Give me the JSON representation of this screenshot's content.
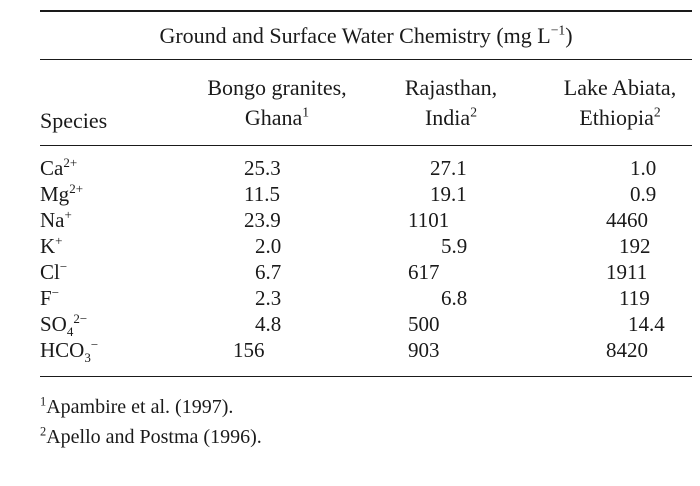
{
  "table": {
    "title": "Ground and Surface Water Chemistry (mg L",
    "title_sup": "−1",
    "title_end": ")",
    "headers": {
      "species": "Species",
      "col1_line1": "Bongo granites,",
      "col1_line2": "Ghana",
      "col1_sup": "1",
      "col2_line1": "Rajasthan,",
      "col2_line2": "India",
      "col2_sup": "2",
      "col3_line1": "Lake Abiata,",
      "col3_line2": "Ethiopia",
      "col3_sup": "2"
    },
    "rows": [
      {
        "base": "Ca",
        "sup": "2+",
        "sub": "",
        "v1": "25.3",
        "v2": "27.1",
        "v3": "1.0"
      },
      {
        "base": "Mg",
        "sup": "2+",
        "sub": "",
        "v1": "11.5",
        "v2": "19.1",
        "v3": "0.9"
      },
      {
        "base": "Na",
        "sup": "+",
        "sub": "",
        "v1": "23.9",
        "v2": "1101",
        "v3": "4460"
      },
      {
        "base": "K",
        "sup": "+",
        "sub": "",
        "v1": "2.0",
        "v2": "5.9",
        "v3": "192"
      },
      {
        "base": "Cl",
        "sup": "−",
        "sub": "",
        "v1": "6.7",
        "v2": "617",
        "v3": "1911"
      },
      {
        "base": "F",
        "sup": "−",
        "sub": "",
        "v1": "2.3",
        "v2": "6.8",
        "v3": "119"
      },
      {
        "base": "SO",
        "sup": "2−",
        "sub": "4",
        "v1": "4.8",
        "v2": "500",
        "v3": "14.4"
      },
      {
        "base": "HCO",
        "sup": "−",
        "sub": "3",
        "v1": "156",
        "v2": "903",
        "v3": "8420"
      }
    ],
    "footnotes": [
      {
        "mark": "1",
        "text": "Apambire et al. (1997)."
      },
      {
        "mark": "2",
        "text": "Apello and Postma (1996)."
      }
    ]
  }
}
